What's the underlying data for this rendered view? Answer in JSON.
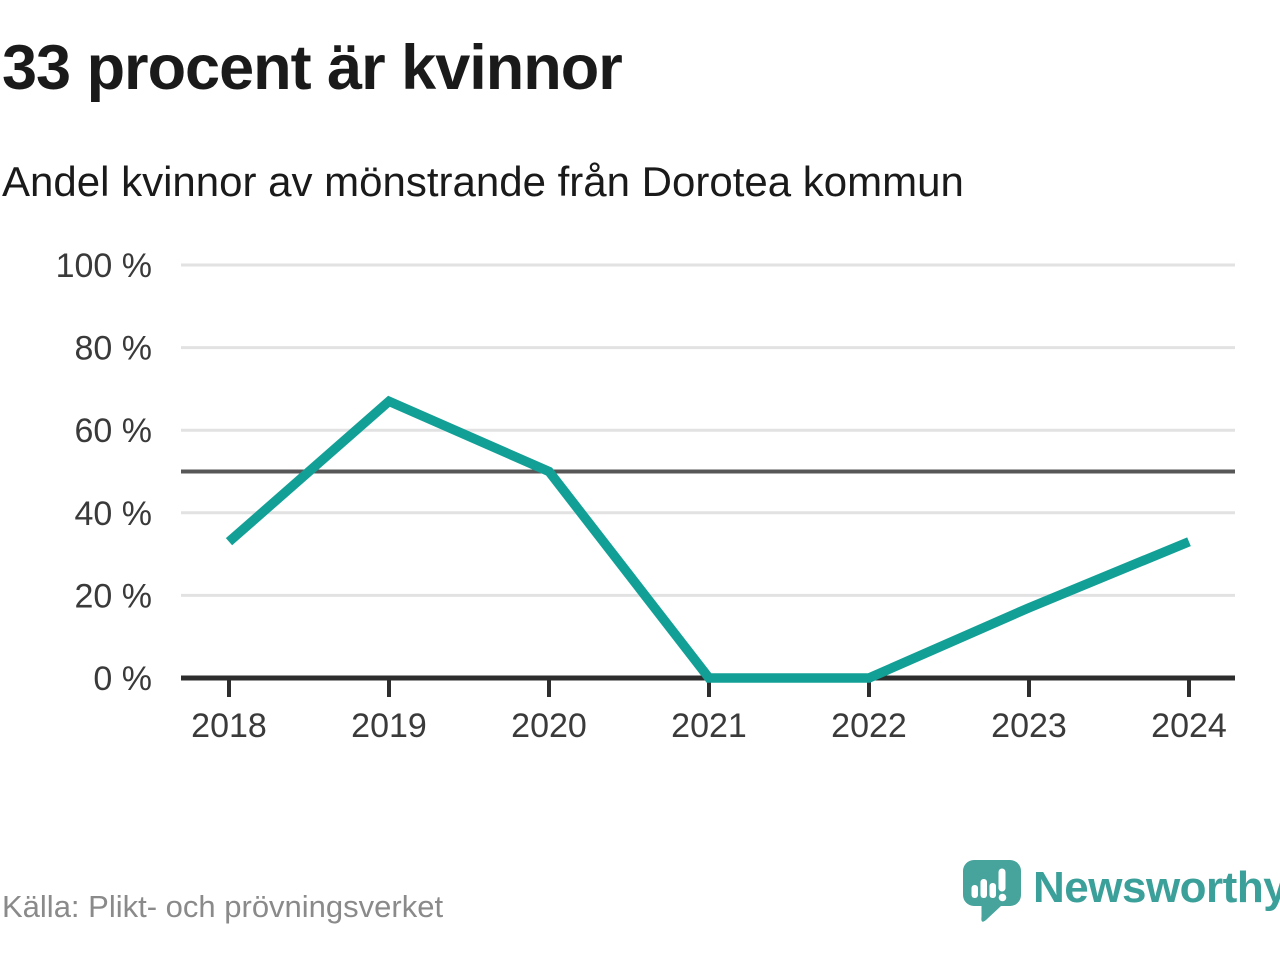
{
  "header": {
    "title": "33 procent är kvinnor",
    "subtitle": "Andel kvinnor av mönstrande från Dorotea kommun"
  },
  "chart_data": {
    "type": "line",
    "title": "33 procent är kvinnor",
    "subtitle": "Andel kvinnor av mönstrande från Dorotea kommun",
    "categories": [
      "2018",
      "2019",
      "2020",
      "2021",
      "2022",
      "2023",
      "2024"
    ],
    "values": [
      33,
      67,
      50,
      0,
      0,
      17,
      33
    ],
    "xlabel": "",
    "ylabel": "",
    "ylim": [
      0,
      100
    ],
    "ytick_values": [
      0,
      20,
      40,
      60,
      80,
      100
    ],
    "ytick_labels": [
      "0 %",
      "20 %",
      "40 %",
      "60 %",
      "80 %",
      "100 %"
    ],
    "reference_line_value": 50,
    "grid": true,
    "legend_position": "none",
    "line_color": "#12a096"
  },
  "footer": {
    "source": "Källa: Plikt- och prövningsverket",
    "brand_name": "Newsworthy"
  },
  "colors": {
    "line": "#12a096",
    "brand": "#3ca09a",
    "bubble": "#46a49c",
    "axis": "#2d2d2d",
    "grid": "#e2e2e2",
    "reference": "#575757",
    "title_text": "#1a1a1a",
    "tick_text": "#3a3a3a",
    "muted_text": "#8a8a8a"
  }
}
